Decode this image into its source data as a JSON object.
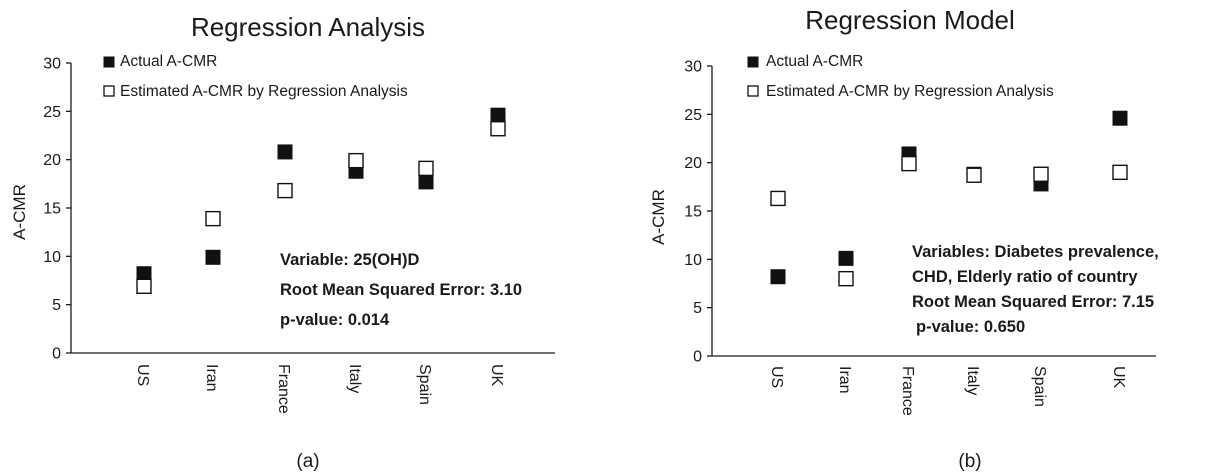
{
  "chart_data": [
    {
      "type": "scatter",
      "title": "Regression Analysis",
      "ylabel": "A-CMR",
      "xlabel": "",
      "categories": [
        "US",
        "Iran",
        "France",
        "Italy",
        "Spain",
        "UK"
      ],
      "ylim": [
        0,
        30
      ],
      "yticks": [
        0,
        5,
        10,
        15,
        20,
        25,
        30
      ],
      "grid": false,
      "series": [
        {
          "name": "Actual A-CMR",
          "marker": "filled-square",
          "values": [
            8.2,
            9.9,
            20.8,
            18.8,
            17.7,
            24.6
          ]
        },
        {
          "name": "Estimated A-CMR by Regression Analysis",
          "marker": "open-square",
          "values": [
            6.9,
            13.9,
            16.8,
            19.9,
            19.1,
            23.2
          ]
        }
      ],
      "annotations": [
        "Variable: 25(OH)D",
        "Root Mean Squared Error: 3.10",
        "p-value: 0.014"
      ],
      "caption": "(a)"
    },
    {
      "type": "scatter",
      "title": "Regression Model",
      "ylabel": "A-CMR",
      "xlabel": "",
      "categories": [
        "US",
        "Iran",
        "France",
        "Italy",
        "Spain",
        "UK"
      ],
      "ylim": [
        0,
        30
      ],
      "yticks": [
        0,
        5,
        10,
        15,
        20,
        25,
        30
      ],
      "grid": false,
      "series": [
        {
          "name": "Actual A-CMR",
          "marker": "filled-square",
          "values": [
            8.2,
            10.1,
            20.9,
            18.8,
            17.8,
            24.6
          ]
        },
        {
          "name": "Estimated A-CMR by Regression Analysis",
          "marker": "open-square",
          "values": [
            16.3,
            8.0,
            19.9,
            18.7,
            18.8,
            19.0
          ]
        }
      ],
      "annotations": [
        "Variables: Diabetes prevalence,",
        "CHD, Elderly ratio of country",
        "Root Mean Squared Error: 7.15",
        "p-value: 0.650"
      ],
      "caption": "(b)"
    }
  ],
  "colors": {
    "filled_marker": "#111111",
    "open_marker_fill": "#ffffff",
    "marker_stroke": "#111111",
    "text": "#1a1a1a"
  }
}
